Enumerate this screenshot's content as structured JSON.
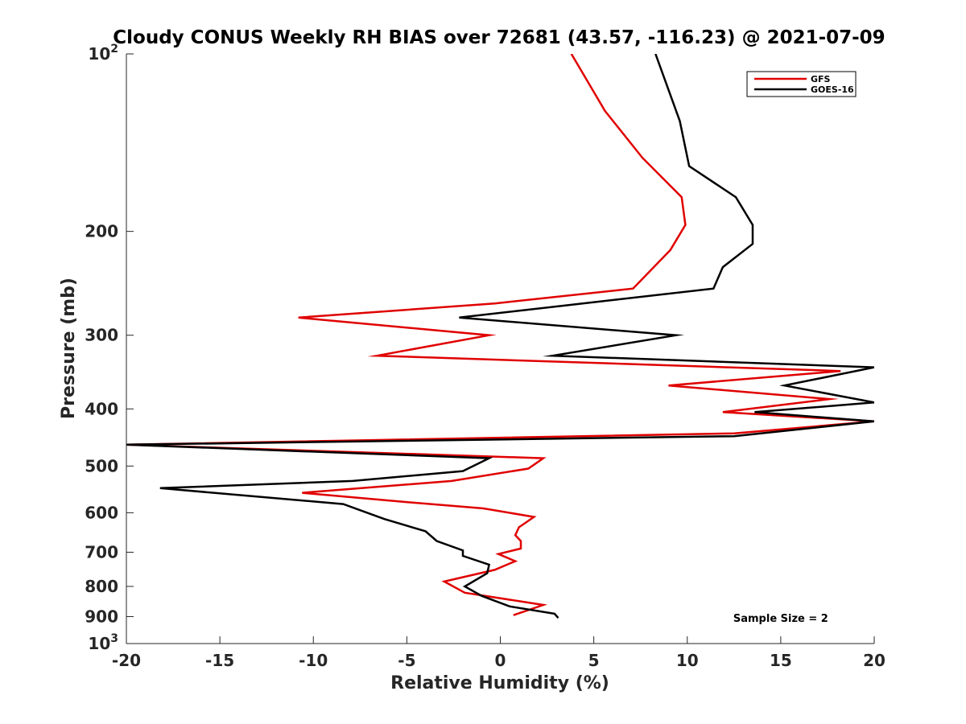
{
  "chart_data": {
    "type": "line",
    "title": "Cloudy CONUS Weekly RH BIAS over 72681 (43.57, -116.23) @ 2021-07-09",
    "xlabel": "Relative Humidity (%)",
    "ylabel": "Pressure (mb)",
    "xlim": [
      -20,
      20
    ],
    "ylim": [
      100,
      1000
    ],
    "y_scale": "log",
    "y_reversed": true,
    "grid": false,
    "legend_position": "top-right",
    "x_ticks": [
      "-20",
      "-15",
      "-10",
      "-5",
      "0",
      "5",
      "10",
      "15",
      "20"
    ],
    "y_ticks": [
      {
        "value": 100,
        "base": "10",
        "exp": "2"
      },
      {
        "value": 200,
        "label": "200"
      },
      {
        "value": 300,
        "label": "300"
      },
      {
        "value": 400,
        "label": "400"
      },
      {
        "value": 500,
        "label": "500"
      },
      {
        "value": 600,
        "label": "600"
      },
      {
        "value": 700,
        "label": "700"
      },
      {
        "value": 800,
        "label": "800"
      },
      {
        "value": 900,
        "label": "900"
      },
      {
        "value": 1000,
        "base": "10",
        "exp": "3"
      }
    ],
    "series": [
      {
        "name": "GFS",
        "color": "#e00000",
        "x": [
          3.8,
          5.6,
          7.6,
          9.7,
          9.9,
          9.1,
          7.1,
          -0.3,
          -10.8,
          -0.6,
          -6.6,
          18.2,
          9.0,
          17.6,
          11.9,
          20.0,
          12.5,
          -20.0,
          2.3,
          1.5,
          -2.6,
          -10.6,
          -5.2,
          -0.9,
          1.8,
          1.0,
          0.8,
          1.1,
          1.1,
          -0.1,
          0.8,
          -0.3,
          -3.0,
          -1.9,
          2.3,
          0.7
        ],
        "y": [
          100,
          125,
          150,
          175,
          195,
          215,
          250,
          265,
          280,
          300,
          325,
          345,
          365,
          385,
          405,
          420,
          440,
          460,
          485,
          505,
          530,
          555,
          575,
          590,
          610,
          635,
          655,
          670,
          690,
          705,
          725,
          750,
          785,
          820,
          860,
          895
        ]
      },
      {
        "name": "GOES-16",
        "color": "#000000",
        "x": [
          8.3,
          9.6,
          10.1,
          12.6,
          13.5,
          13.5,
          11.9,
          11.4,
          -2.2,
          9.4,
          2.8,
          20.0,
          15.2,
          20.0,
          13.6,
          20.0,
          12.5,
          -20.0,
          -0.6,
          -2.0,
          -7.9,
          -18.2,
          -8.4,
          -6.2,
          -4.0,
          -3.4,
          -2.0,
          -2.0,
          -0.6,
          -0.7,
          -1.9,
          -1.0,
          0.5,
          2.9,
          3.1
        ],
        "y": [
          100,
          130,
          155,
          175,
          195,
          210,
          230,
          250,
          280,
          300,
          325,
          340,
          365,
          390,
          405,
          420,
          445,
          460,
          485,
          510,
          530,
          545,
          580,
          615,
          645,
          670,
          695,
          710,
          735,
          760,
          800,
          830,
          865,
          890,
          905
        ]
      }
    ],
    "annotations": [
      {
        "text": "Sample Size = 2",
        "x": 15,
        "y": 905
      }
    ]
  }
}
